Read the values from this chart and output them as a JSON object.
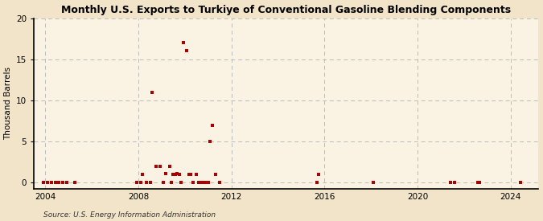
{
  "title": "Monthly U.S. Exports to Turkiye of Conventional Gasoline Blending Components",
  "ylabel": "Thousand Barrels",
  "source": "Source: U.S. Energy Information Administration",
  "xlim": [
    2003.5,
    2025.2
  ],
  "ylim": [
    -0.8,
    20
  ],
  "yticks": [
    0,
    5,
    10,
    15,
    20
  ],
  "xticks": [
    2004,
    2008,
    2012,
    2016,
    2020,
    2024
  ],
  "background_color": "#f2e4c8",
  "plot_bg_color": "#faf3e3",
  "grid_color": "#bbbbbb",
  "marker_color": "#aa0000",
  "data_points": [
    [
      2003.917,
      0.05
    ],
    [
      2004.083,
      0.05
    ],
    [
      2004.25,
      0.05
    ],
    [
      2004.417,
      0.05
    ],
    [
      2004.583,
      0.05
    ],
    [
      2004.75,
      0.05
    ],
    [
      2004.917,
      0.05
    ],
    [
      2005.25,
      0.05
    ],
    [
      2007.917,
      0.05
    ],
    [
      2008.083,
      0.05
    ],
    [
      2008.167,
      1.0
    ],
    [
      2008.333,
      0.05
    ],
    [
      2008.5,
      0.05
    ],
    [
      2008.583,
      11.0
    ],
    [
      2008.75,
      2.0
    ],
    [
      2008.917,
      2.0
    ],
    [
      2009.083,
      0.05
    ],
    [
      2009.167,
      1.1
    ],
    [
      2009.333,
      2.0
    ],
    [
      2009.417,
      0.05
    ],
    [
      2009.5,
      1.0
    ],
    [
      2009.583,
      1.0
    ],
    [
      2009.667,
      1.1
    ],
    [
      2009.75,
      1.0
    ],
    [
      2009.833,
      0.05
    ],
    [
      2009.917,
      17.0
    ],
    [
      2010.083,
      16.0
    ],
    [
      2010.167,
      1.0
    ],
    [
      2010.25,
      1.0
    ],
    [
      2010.333,
      0.05
    ],
    [
      2010.5,
      1.0
    ],
    [
      2010.583,
      0.05
    ],
    [
      2010.667,
      0.05
    ],
    [
      2010.75,
      0.05
    ],
    [
      2010.917,
      0.05
    ],
    [
      2011.0,
      0.05
    ],
    [
      2011.083,
      5.0
    ],
    [
      2011.167,
      7.0
    ],
    [
      2011.333,
      1.0
    ],
    [
      2011.5,
      0.05
    ],
    [
      2015.667,
      0.05
    ],
    [
      2015.75,
      1.0
    ],
    [
      2018.083,
      0.05
    ],
    [
      2021.417,
      0.05
    ],
    [
      2021.583,
      0.05
    ],
    [
      2022.583,
      0.05
    ],
    [
      2022.667,
      0.05
    ],
    [
      2024.417,
      0.05
    ]
  ]
}
